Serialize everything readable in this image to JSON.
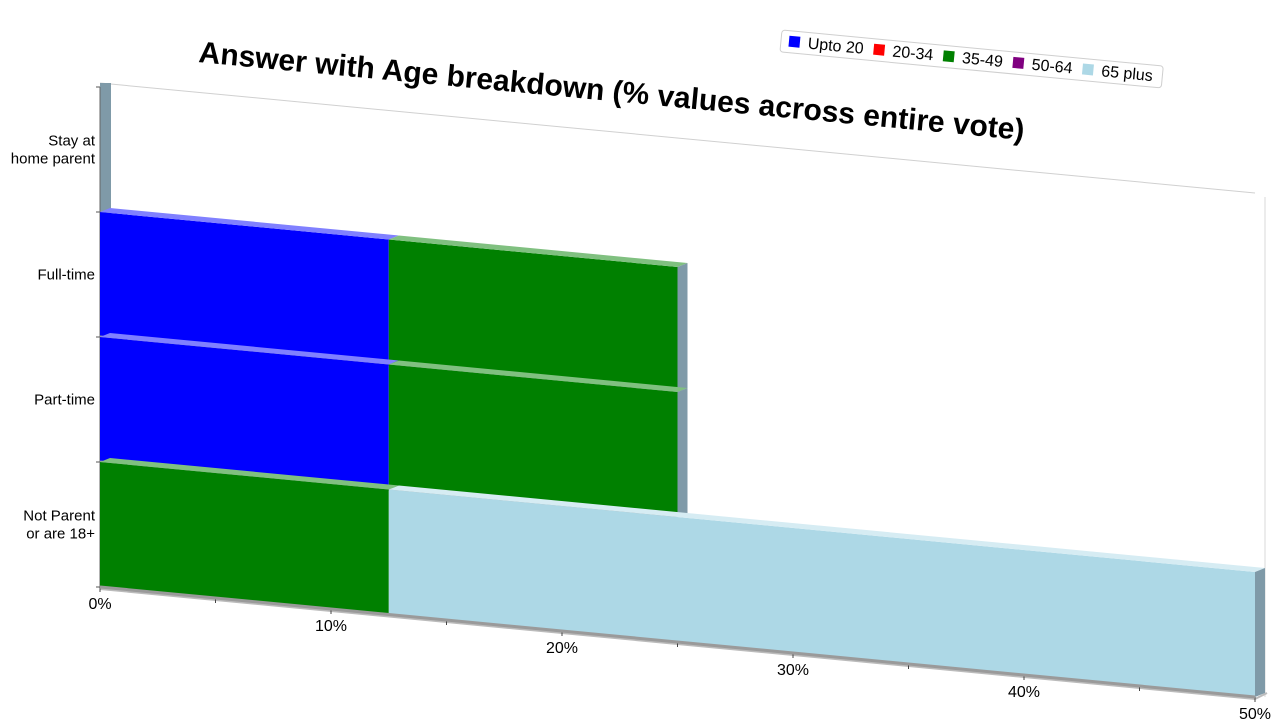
{
  "chart_data": {
    "type": "bar",
    "orientation": "horizontal",
    "stacked": true,
    "perspective_3d": true,
    "title": "Answer with Age breakdown (% values across entire vote)",
    "categories": [
      [
        "Stay at",
        "home parent"
      ],
      [
        "Full-time"
      ],
      [
        "Part-time"
      ],
      [
        "Not Parent",
        "or are 18+"
      ]
    ],
    "series": [
      {
        "name": "Upto 20",
        "color": "#0000ff",
        "values": [
          0,
          12.5,
          12.5,
          0
        ]
      },
      {
        "name": "20-34",
        "color": "#ff0000",
        "values": [
          0,
          0,
          0,
          0
        ]
      },
      {
        "name": "35-49",
        "color": "#008000",
        "values": [
          0,
          12.5,
          12.5,
          12.5
        ]
      },
      {
        "name": "50-64",
        "color": "#800080",
        "values": [
          0,
          0,
          0,
          0
        ]
      },
      {
        "name": "65 plus",
        "color": "#add8e6",
        "values": [
          0,
          0,
          0,
          37.5
        ]
      }
    ],
    "x_ticks": [
      "0%",
      "10%",
      "20%",
      "30%",
      "40%",
      "50%"
    ],
    "xlim": [
      0,
      50
    ],
    "legend_position": "top-right",
    "grid": false
  }
}
